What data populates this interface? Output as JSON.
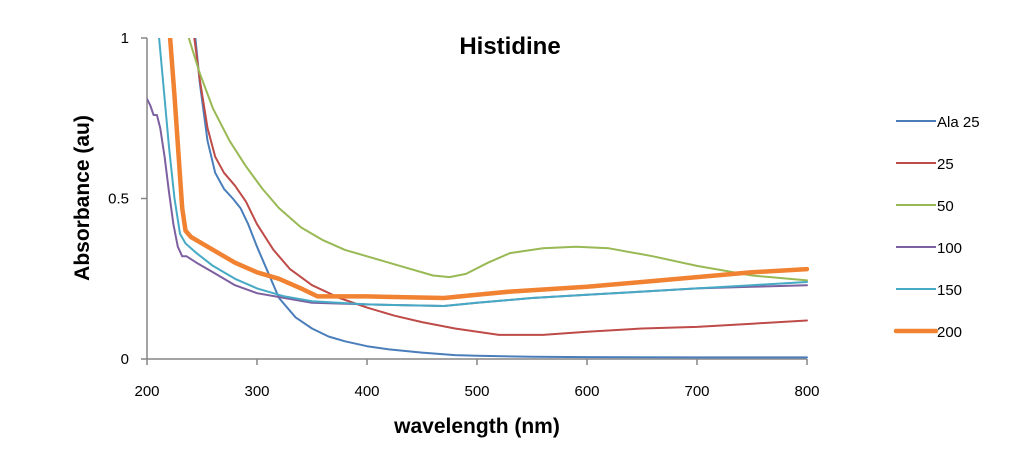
{
  "chart_data": {
    "type": "line",
    "title": "Histidine",
    "xlabel": "wavelength (nm)",
    "ylabel": "Absorbance (au)",
    "xlim": [
      200,
      800
    ],
    "ylim": [
      0,
      1
    ],
    "xticks": [
      200,
      300,
      400,
      500,
      600,
      700,
      800
    ],
    "yticks": [
      0,
      0.5,
      1
    ],
    "ytick_labels": [
      "0",
      "0.5",
      "1"
    ],
    "grid": false,
    "legend_position": "right",
    "series": [
      {
        "name": "Ala 25",
        "color": "#4a7ebb",
        "width": 2,
        "x": [
          244,
          248,
          255,
          262,
          270,
          278,
          285,
          292,
          300,
          310,
          320,
          335,
          350,
          365,
          380,
          400,
          420,
          450,
          480,
          500,
          550,
          600,
          700,
          800
        ],
        "y": [
          1.0,
          0.86,
          0.68,
          0.58,
          0.53,
          0.5,
          0.47,
          0.42,
          0.35,
          0.27,
          0.19,
          0.13,
          0.095,
          0.07,
          0.055,
          0.04,
          0.03,
          0.02,
          0.012,
          0.01,
          0.007,
          0.006,
          0.005,
          0.005
        ]
      },
      {
        "name": "25",
        "color": "#be4b48",
        "width": 2,
        "x": [
          243,
          248,
          255,
          262,
          270,
          280,
          290,
          300,
          315,
          330,
          350,
          375,
          400,
          425,
          450,
          480,
          520,
          560,
          600,
          650,
          700,
          750,
          800
        ],
        "y": [
          1.0,
          0.87,
          0.72,
          0.63,
          0.58,
          0.54,
          0.49,
          0.42,
          0.34,
          0.28,
          0.23,
          0.19,
          0.16,
          0.135,
          0.115,
          0.095,
          0.075,
          0.075,
          0.085,
          0.095,
          0.1,
          0.11,
          0.12
        ]
      },
      {
        "name": "50",
        "color": "#98b954",
        "width": 2,
        "x": [
          238,
          248,
          260,
          275,
          290,
          305,
          320,
          340,
          360,
          380,
          400,
          430,
          460,
          475,
          490,
          510,
          530,
          560,
          590,
          620,
          660,
          700,
          750,
          800
        ],
        "y": [
          1.0,
          0.89,
          0.78,
          0.68,
          0.6,
          0.53,
          0.47,
          0.41,
          0.37,
          0.34,
          0.32,
          0.29,
          0.26,
          0.255,
          0.265,
          0.3,
          0.33,
          0.345,
          0.35,
          0.345,
          0.32,
          0.29,
          0.26,
          0.245
        ]
      },
      {
        "name": "100",
        "color": "#7d60a0",
        "width": 2,
        "x": [
          200,
          203,
          206,
          209,
          212,
          216,
          220,
          224,
          228,
          232,
          236,
          245,
          260,
          280,
          300,
          325,
          350,
          400,
          470,
          500,
          550,
          600,
          650,
          700,
          750,
          800
        ],
        "y": [
          0.81,
          0.79,
          0.76,
          0.76,
          0.72,
          0.63,
          0.52,
          0.42,
          0.35,
          0.32,
          0.32,
          0.3,
          0.27,
          0.23,
          0.205,
          0.19,
          0.175,
          0.17,
          0.165,
          0.175,
          0.19,
          0.2,
          0.21,
          0.22,
          0.225,
          0.23
        ]
      },
      {
        "name": "150",
        "color": "#46aac5",
        "width": 2,
        "x": [
          211,
          215,
          220,
          225,
          230,
          235,
          245,
          260,
          280,
          300,
          325,
          350,
          400,
          470,
          500,
          550,
          600,
          650,
          700,
          750,
          800
        ],
        "y": [
          1.0,
          0.85,
          0.66,
          0.5,
          0.39,
          0.36,
          0.33,
          0.29,
          0.25,
          0.22,
          0.195,
          0.18,
          0.17,
          0.165,
          0.175,
          0.19,
          0.2,
          0.21,
          0.22,
          0.23,
          0.24
        ]
      },
      {
        "name": "200",
        "color": "#f08232",
        "width": 4.5,
        "x": [
          221,
          225,
          229,
          232,
          235,
          240,
          250,
          265,
          280,
          300,
          320,
          340,
          355,
          400,
          470,
          500,
          530,
          600,
          650,
          700,
          750,
          800
        ],
        "y": [
          1.0,
          0.82,
          0.62,
          0.47,
          0.4,
          0.38,
          0.36,
          0.33,
          0.3,
          0.27,
          0.25,
          0.22,
          0.195,
          0.195,
          0.19,
          0.2,
          0.21,
          0.225,
          0.24,
          0.255,
          0.27,
          0.28
        ]
      }
    ]
  }
}
